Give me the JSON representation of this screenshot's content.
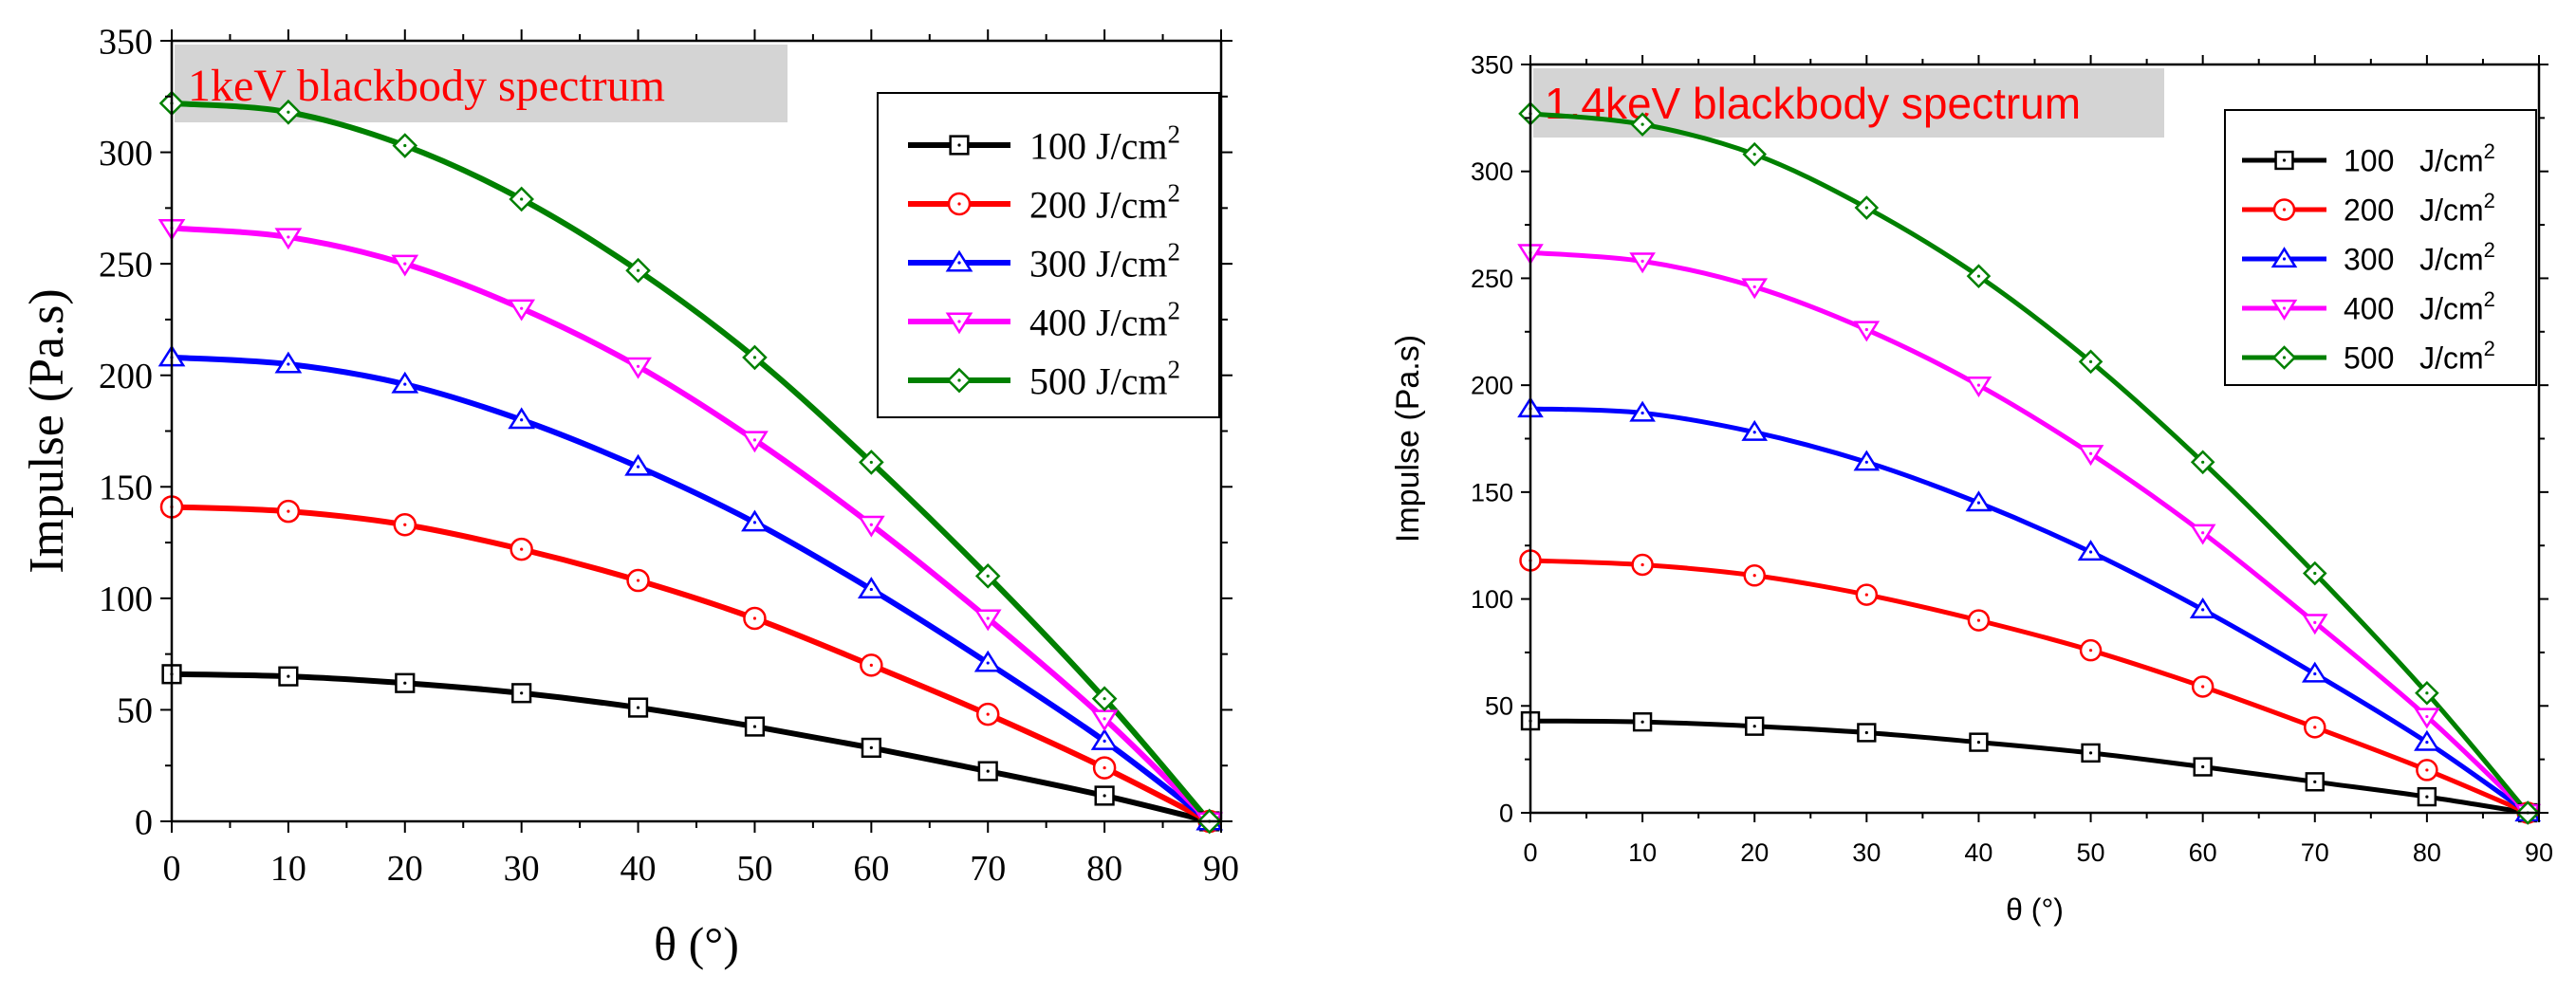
{
  "chart_data": [
    {
      "type": "line",
      "title": "1keV blackbody spectrum",
      "xlabel": "θ (°)",
      "ylabel": "Impulse (Pa.s)",
      "xlim": [
        0,
        90
      ],
      "ylim": [
        0,
        350
      ],
      "xticks": [
        0,
        10,
        20,
        30,
        40,
        50,
        60,
        70,
        80,
        90
      ],
      "yticks": [
        0,
        50,
        100,
        150,
        200,
        250,
        300,
        350
      ],
      "x": [
        0,
        10,
        20,
        30,
        40,
        50,
        60,
        70,
        80,
        89
      ],
      "legend_position": "top-right",
      "series": [
        {
          "name": "100 J/cm",
          "sup": "2",
          "color": "#000000",
          "marker": "square",
          "values": [
            66,
            65,
            62,
            57.5,
            51,
            42.5,
            33,
            22.5,
            11.5,
            0
          ]
        },
        {
          "name": "200 J/cm",
          "sup": "2",
          "color": "#ff0000",
          "marker": "circle",
          "values": [
            141,
            139,
            133,
            122,
            108,
            91,
            70,
            48,
            24,
            0
          ]
        },
        {
          "name": "300 J/cm",
          "sup": "2",
          "color": "#0000ff",
          "marker": "triangle-up",
          "values": [
            208,
            205,
            196,
            180,
            159,
            134,
            104,
            71,
            36,
            0
          ]
        },
        {
          "name": "400 J/cm",
          "sup": "2",
          "color": "#ff00ff",
          "marker": "triangle-down",
          "values": [
            266,
            262,
            250,
            230,
            204,
            171,
            133,
            91,
            46,
            0
          ]
        },
        {
          "name": "500 J/cm",
          "sup": "2",
          "color": "#008000",
          "marker": "diamond",
          "values": [
            322,
            318,
            303,
            279,
            247,
            208,
            161,
            110,
            55,
            0
          ]
        }
      ]
    },
    {
      "type": "line",
      "title": "1.4keV blackbody spectrum",
      "xlabel": "θ (°)",
      "ylabel": "Impulse (Pa.s)",
      "xlim": [
        0,
        90
      ],
      "ylim": [
        0,
        350
      ],
      "xticks": [
        0,
        10,
        20,
        30,
        40,
        50,
        60,
        70,
        80,
        90
      ],
      "yticks": [
        0,
        50,
        100,
        150,
        200,
        250,
        300,
        350
      ],
      "x": [
        0,
        10,
        20,
        30,
        40,
        50,
        60,
        70,
        80,
        89
      ],
      "legend_position": "top-right",
      "series": [
        {
          "name": "100   J/cm",
          "sup": "2",
          "color": "#000000",
          "marker": "square",
          "values": [
            43,
            42.5,
            40.5,
            37.5,
            33,
            28,
            21.5,
            14.5,
            7.5,
            0
          ]
        },
        {
          "name": "200   J/cm",
          "sup": "2",
          "color": "#ff0000",
          "marker": "circle",
          "values": [
            118,
            116,
            111,
            102,
            90,
            76,
            59,
            40,
            20,
            0
          ]
        },
        {
          "name": "300   J/cm",
          "sup": "2",
          "color": "#0000ff",
          "marker": "triangle-up",
          "values": [
            189,
            187,
            178,
            164,
            145,
            122,
            95,
            65,
            33,
            0
          ]
        },
        {
          "name": "400   J/cm",
          "sup": "2",
          "color": "#ff00ff",
          "marker": "triangle-down",
          "values": [
            262,
            258,
            246,
            226,
            200,
            168,
            131,
            89,
            45,
            0
          ]
        },
        {
          "name": "500   J/cm",
          "sup": "2",
          "color": "#008000",
          "marker": "diamond",
          "values": [
            327,
            322,
            308,
            283,
            251,
            211,
            164,
            112,
            56,
            0
          ]
        }
      ]
    }
  ]
}
